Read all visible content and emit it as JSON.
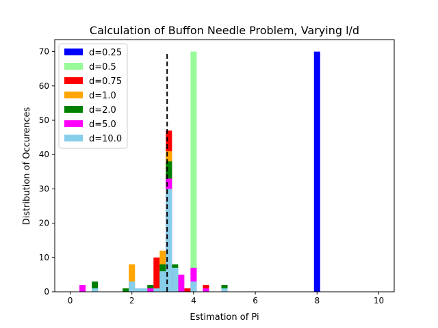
{
  "chart_data": {
    "type": "bar",
    "title": "Calculation of Buffon Needle Problem, Varying l/d",
    "xlabel": "Estimation of Pi",
    "ylabel": "Distribution of Occurences",
    "xlim": [
      -0.5,
      10.5
    ],
    "ylim": [
      0,
      73.5
    ],
    "xticks": [
      "0",
      "2",
      "4",
      "6",
      "8",
      "10"
    ],
    "yticks": [
      "0",
      "10",
      "20",
      "30",
      "40",
      "50",
      "60",
      "70"
    ],
    "legend_position": "top-left",
    "bin_width": 0.2,
    "reference_line": {
      "x": 3.14159,
      "y_range": [
        0,
        70
      ],
      "style": "dashed",
      "color": "#000000"
    },
    "series": [
      {
        "name": "d=0.25",
        "color": "#0000ff",
        "bars": [
          {
            "x": 8.0,
            "y": 70
          }
        ]
      },
      {
        "name": "d=0.5",
        "color": "#98fb98",
        "bars": [
          {
            "x": 4.0,
            "y": 70
          }
        ]
      },
      {
        "name": "d=0.75",
        "color": "#ff0000",
        "bars": [
          {
            "x": 2.8,
            "y": 10
          },
          {
            "x": 3.2,
            "y": 47
          },
          {
            "x": 3.8,
            "y": 1
          },
          {
            "x": 4.4,
            "y": 2
          }
        ]
      },
      {
        "name": "d=1.0",
        "color": "#ffa500",
        "bars": [
          {
            "x": 2.0,
            "y": 8
          },
          {
            "x": 3.0,
            "y": 12
          },
          {
            "x": 3.2,
            "y": 41
          }
        ]
      },
      {
        "name": "d=2.0",
        "color": "#008000",
        "bars": [
          {
            "x": 0.8,
            "y": 3
          },
          {
            "x": 1.8,
            "y": 1
          },
          {
            "x": 2.6,
            "y": 2
          },
          {
            "x": 3.0,
            "y": 8
          },
          {
            "x": 3.2,
            "y": 38
          },
          {
            "x": 3.4,
            "y": 8
          },
          {
            "x": 5.0,
            "y": 2
          }
        ]
      },
      {
        "name": "d=5.0",
        "color": "#ff00ff",
        "bars": [
          {
            "x": 0.4,
            "y": 2
          },
          {
            "x": 2.4,
            "y": 1
          },
          {
            "x": 2.6,
            "y": 1
          },
          {
            "x": 3.2,
            "y": 33
          },
          {
            "x": 3.6,
            "y": 5
          },
          {
            "x": 4.0,
            "y": 7
          },
          {
            "x": 4.4,
            "y": 1
          }
        ]
      },
      {
        "name": "d=10.0",
        "color": "#87ceeb",
        "bars": [
          {
            "x": 0.8,
            "y": 1
          },
          {
            "x": 2.0,
            "y": 3
          },
          {
            "x": 2.2,
            "y": 1
          },
          {
            "x": 2.4,
            "y": 1
          },
          {
            "x": 2.8,
            "y": 1
          },
          {
            "x": 3.0,
            "y": 6
          },
          {
            "x": 3.2,
            "y": 30
          },
          {
            "x": 3.4,
            "y": 7
          },
          {
            "x": 4.0,
            "y": 3
          },
          {
            "x": 5.0,
            "y": 1
          }
        ]
      }
    ]
  }
}
